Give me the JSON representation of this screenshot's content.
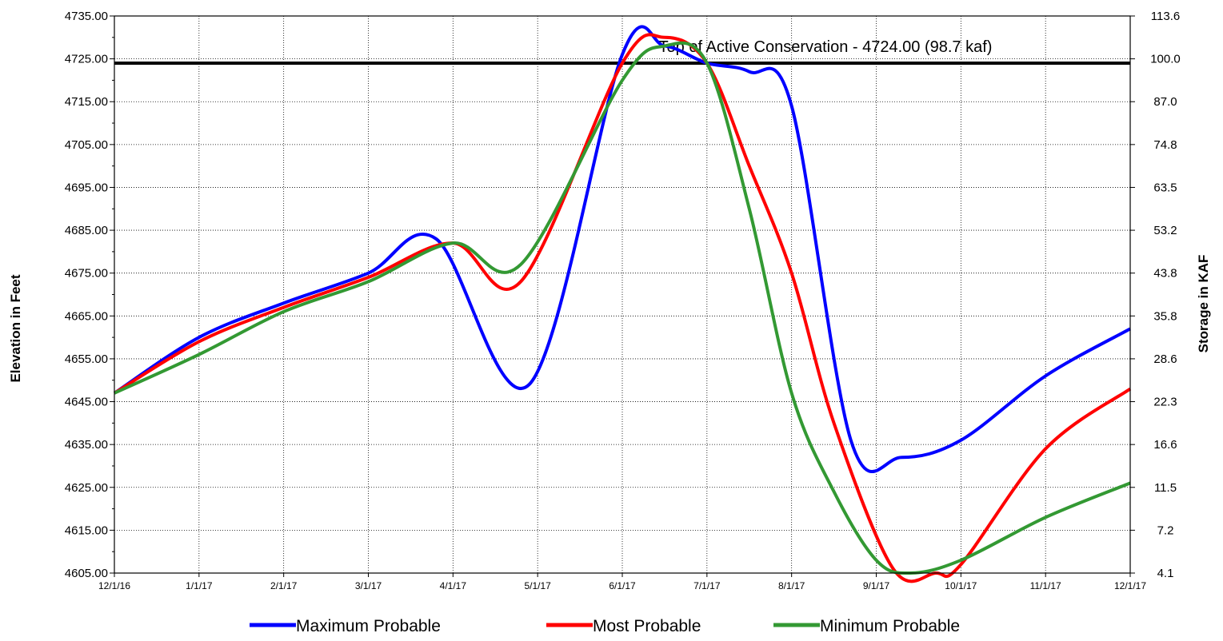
{
  "chart_data": {
    "type": "line",
    "ylabel": "Elevation in Feet",
    "y2label": "Storage in KAF",
    "ylim": [
      4605,
      4735
    ],
    "yticks": [
      "4605.00",
      "4615.00",
      "4625.00",
      "4635.00",
      "4645.00",
      "4655.00",
      "4665.00",
      "4675.00",
      "4685.00",
      "4695.00",
      "4705.00",
      "4715.00",
      "4725.00",
      "4735.00"
    ],
    "y2ticks": [
      "4.1",
      "7.2",
      "11.5",
      "16.6",
      "22.3",
      "28.6",
      "35.8",
      "43.8",
      "53.2",
      "63.5",
      "74.8",
      "87.0",
      "100.0",
      "113.6"
    ],
    "xticks": [
      "12/1/16",
      "1/1/17",
      "2/1/17",
      "3/1/17",
      "4/1/17",
      "5/1/17",
      "6/1/17",
      "7/1/17",
      "8/1/17",
      "9/1/17",
      "10/1/17",
      "11/1/17",
      "12/1/17"
    ],
    "grid": true,
    "reference_line": {
      "y": 4724,
      "label": "Top of Active Conservation - 4724.00 (98.7 kaf)",
      "color": "#000000"
    },
    "series": [
      {
        "name": "Maximum Probable",
        "color": "#0000ff",
        "x": [
          0,
          1,
          2,
          3,
          3.8,
          4.9,
          6,
          6.5,
          7,
          7.5,
          8,
          8.7,
          9.3,
          10,
          11,
          12
        ],
        "y": [
          4647,
          4660,
          4668,
          4675,
          4683,
          4649,
          4726,
          4728,
          4724,
          4722,
          4714,
          4636,
          4632,
          4636,
          4651,
          4662
        ]
      },
      {
        "name": "Most Probable",
        "color": "#ff0000",
        "x": [
          0,
          1,
          2,
          3,
          4,
          4.8,
          6,
          6.5,
          7,
          7.5,
          8,
          8.5,
          9.2,
          9.7,
          10,
          11,
          12
        ],
        "y": [
          4647,
          4659,
          4667,
          4674,
          4682,
          4673,
          4724,
          4730,
          4724,
          4700,
          4675,
          4640,
          4606,
          4605,
          4607,
          4634,
          4648
        ]
      },
      {
        "name": "Minimum Probable",
        "color": "#339933",
        "x": [
          0,
          1,
          2,
          3,
          4,
          4.8,
          6,
          6.5,
          7,
          7.5,
          8,
          8.5,
          9,
          9.4,
          10,
          11,
          12
        ],
        "y": [
          4647,
          4656,
          4666,
          4673,
          4682,
          4677,
          4720,
          4728,
          4724,
          4690,
          4647,
          4624,
          4608,
          4605,
          4608,
          4618,
          4626
        ]
      }
    ]
  }
}
